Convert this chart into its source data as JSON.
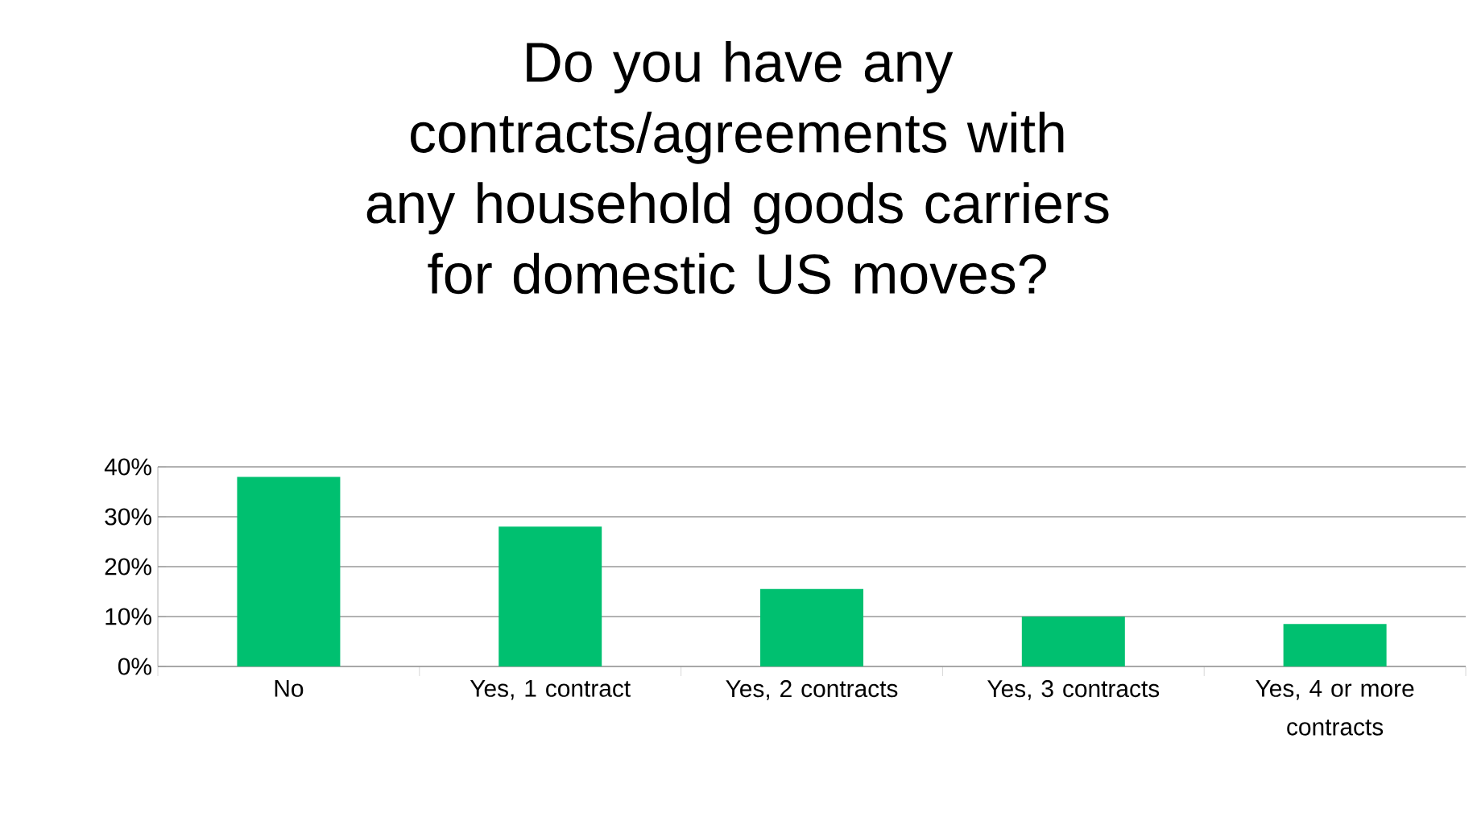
{
  "chart_data": {
    "type": "bar",
    "title": "Do you have any contracts/agreements with any household goods carriers for domestic US moves?",
    "categories": [
      "No",
      "Yes, 1 contract",
      "Yes, 2 contracts",
      "Yes, 3 contracts",
      "Yes, 4 or more contracts"
    ],
    "values": [
      38,
      28,
      15.5,
      10,
      8.5
    ],
    "color": "#00c070",
    "ylim": [
      0,
      40
    ],
    "yticks": [
      {
        "value": 0,
        "label": "0%"
      },
      {
        "value": 10,
        "label": "10%"
      },
      {
        "value": 20,
        "label": "20%"
      },
      {
        "value": 30,
        "label": "30%"
      },
      {
        "value": 40,
        "label": "40%"
      }
    ],
    "grid": "y"
  }
}
